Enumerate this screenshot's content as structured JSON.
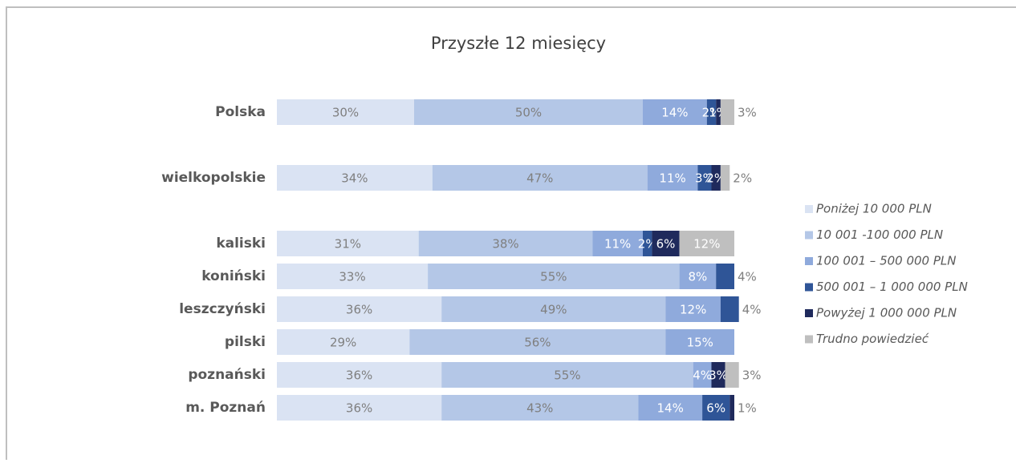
{
  "chart_data": {
    "type": "stacked-bar",
    "orientation": "horizontal",
    "title": "Przyszłe 12 miesięcy",
    "categories": [
      "Polska",
      null,
      "wielkopolskie",
      null,
      "kaliski",
      "koniński",
      "leszczyński",
      "pilski",
      "poznański",
      "m. Poznań"
    ],
    "series": [
      {
        "name": "Poniżej 10 000 PLN",
        "color": "#dae3f3",
        "label_color": "#7f7f7f",
        "values": [
          30,
          null,
          34,
          null,
          31,
          33,
          36,
          29,
          36,
          36
        ],
        "value_labels": [
          "30%",
          null,
          "34%",
          null,
          "31%",
          "33%",
          "36%",
          "29%",
          "36%",
          "36%"
        ]
      },
      {
        "name": "10 001 -100 000 PLN",
        "color": "#b4c7e7",
        "label_color": "#7f7f7f",
        "values": [
          50,
          null,
          47,
          null,
          38,
          55,
          49,
          56,
          55,
          43
        ],
        "value_labels": [
          "50%",
          null,
          "47%",
          null,
          "38%",
          "55%",
          "49%",
          "56%",
          "55%",
          "43%"
        ]
      },
      {
        "name": "100 001 – 500 000 PLN",
        "color": "#8faadc",
        "label_color": "#ffffff",
        "values": [
          14,
          null,
          11,
          null,
          11,
          8,
          12,
          15,
          4,
          14
        ],
        "value_labels": [
          "14%",
          null,
          "11%",
          null,
          "11%",
          "8%",
          "12%",
          "15%",
          "4%",
          "14%"
        ]
      },
      {
        "name": "500 001 – 1 000 000 PLN",
        "color": "#2f5597",
        "label_color": "#ffffff",
        "values": [
          2,
          null,
          3,
          null,
          2,
          4,
          4,
          null,
          null,
          6
        ],
        "value_labels": [
          "2%",
          null,
          "3%",
          null,
          "2%",
          "4%",
          "4%",
          null,
          null,
          "6%"
        ]
      },
      {
        "name": "Powyżej 1 000 000 PLN",
        "color": "#1f2a5c",
        "label_color": "#ffffff",
        "values": [
          1,
          null,
          2,
          null,
          6,
          null,
          null,
          null,
          3,
          1
        ],
        "value_labels": [
          "1%",
          null,
          "2%",
          null,
          "6%",
          null,
          null,
          null,
          "3%",
          "1%"
        ]
      },
      {
        "name": "Trudno powiedzieć",
        "color": "#bfbfbf",
        "label_color": "#ffffff",
        "values": [
          3,
          null,
          2,
          null,
          12,
          null,
          null,
          null,
          3,
          null
        ],
        "value_labels": [
          "3%",
          null,
          "2%",
          null,
          "12%",
          null,
          null,
          null,
          "3%",
          null
        ]
      }
    ],
    "legend": "right"
  }
}
